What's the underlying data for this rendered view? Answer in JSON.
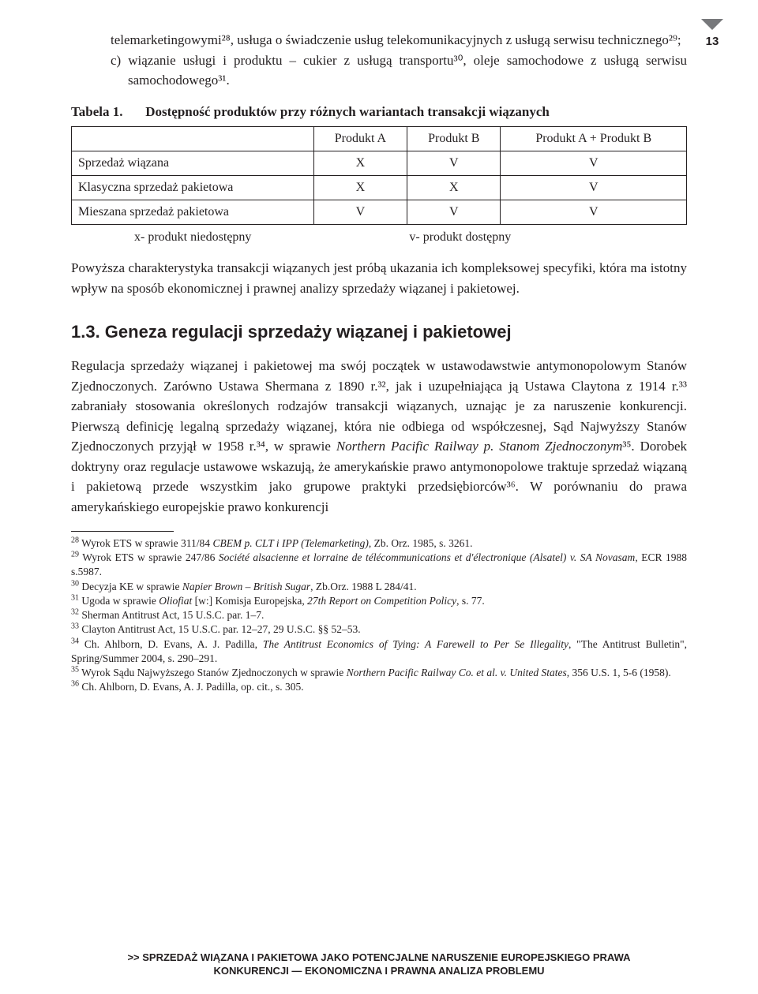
{
  "page_number": "13",
  "para_intro": "telemarketingowymi²⁸, usługa o świadczenie usług telekomunikacyjnych z usługą serwisu technicznego²⁹;",
  "list_c": "c) wiązanie usługi i produktu – cukier z usługą transportu³⁰, oleje samochodowe z usługą serwisu samochodowego³¹.",
  "table": {
    "label": "Tabela 1.",
    "title": "Dostępność produktów przy różnych wariantach transakcji wiązanych",
    "columns": [
      "",
      "Produkt A",
      "Produkt B",
      "Produkt A + Produkt B"
    ],
    "rows": [
      [
        "Sprzedaż wiązana",
        "X",
        "V",
        "V"
      ],
      [
        "Klasyczna sprzedaż pakietowa",
        "X",
        "X",
        "V"
      ],
      [
        "Mieszana sprzedaż pakietowa",
        "V",
        "V",
        "V"
      ]
    ],
    "legend_x": "x- produkt niedostępny",
    "legend_v": "v- produkt dostępny"
  },
  "para_after_table": "Powyższa charakterystyka transakcji wiązanych jest próbą ukazania ich kompleksowej specyfiki, która ma istotny wpływ na sposób ekonomicznej i prawnej analizy sprzedaży wiązanej i pakietowej.",
  "section_title": "1.3. Geneza regulacji sprzedaży wiązanej i pakietowej",
  "para_section_pre": "Regulacja sprzedaży wiązanej i pakietowej ma swój początek w ustawodawstwie antymonopolowym Stanów Zjednoczonych. Zarówno Ustawa Shermana z 1890 r.³², jak i uzupełniająca ją Ustawa Claytona z 1914 r.³³ zabraniały stosowania określonych rodzajów transakcji wiązanych, uznając je za naruszenie konkurencji. Pierwszą definicję legalną sprzedaży wiązanej, która nie odbiega od współczesnej, Sąd Najwyższy Stanów Zjednoczonych przyjął w 1958 r.³⁴, w sprawie ",
  "para_section_it1": "Northern Pacific Railway p. Stanom Zjednoczonym",
  "para_section_mid": "³⁵. Dorobek doktryny oraz regulacje ustawowe wskazują, że amerykańskie prawo antymonopolowe traktuje sprzedaż wiązaną i pakietową przede wszystkim jako grupowe praktyki przedsiębiorców³⁶. W porównaniu do prawa amerykańskiego europejskie prawo konkurencji",
  "footnotes": [
    {
      "n": "28",
      "t_pre": "Wyrok ETS w sprawie 311/84 ",
      "t_it": "CBEM p. CLT i IPP (Telemarketing)",
      "t_post": ", Zb. Orz. 1985, s. 3261."
    },
    {
      "n": "29",
      "t_pre": "Wyrok ETS w sprawie 247/86 ",
      "t_it": "Société alsacienne et lorraine de télécommunications et d'électronique (Alsatel) v. SA Novasam",
      "t_post": ", ECR 1988 s.5987."
    },
    {
      "n": "30",
      "t_pre": "Decyzja KE w sprawie ",
      "t_it": "Napier Brown – British Sugar",
      "t_post": ", Zb.Orz. 1988 L 284/41."
    },
    {
      "n": "31",
      "t_pre": "Ugoda w sprawie ",
      "t_it": "Oliofiat",
      "t_post": " [w:] Komisja Europejska, ",
      "t_it2": "27th Report on Competition Policy",
      "t_post2": ", s. 77."
    },
    {
      "n": "32",
      "t_pre": "Sherman Antitrust Act, 15 U.S.C. par. 1–7.",
      "t_it": "",
      "t_post": ""
    },
    {
      "n": "33",
      "t_pre": "Clayton Antitrust Act, 15 U.S.C. par. 12–27, 29 U.S.C. §§ 52–53.",
      "t_it": "",
      "t_post": ""
    },
    {
      "n": "34",
      "t_pre": "Ch. Ahlborn, D. Evans, A. J. Padilla, ",
      "t_it": "The Antitrust Economics of Tying: A Farewell to Per Se Illegality",
      "t_post": ", \"The Antitrust Bulletin\", Spring/Summer 2004, s. 290–291."
    },
    {
      "n": "35",
      "t_pre": "Wyrok Sądu Najwyższego Stanów Zjednoczonych w sprawie ",
      "t_it": "Northern Pacific Railway Co. et al. v. United States",
      "t_post": ", 356 U.S. 1, 5-6 (1958)."
    },
    {
      "n": "36",
      "t_pre": "Ch. Ahlborn, D. Evans, A. J. Padilla, op. cit., s. 305.",
      "t_it": "",
      "t_post": ""
    }
  ],
  "runner_l1": ">> SPRZEDAŻ WIĄZANA I PAKIETOWA JAKO POTENCJALNE NARUSZENIE EUROPEJSKIEGO PRAWA",
  "runner_l2": "KONKURENCJI — EKONOMICZNA I PRAWNA ANALIZA PROBLEMU"
}
